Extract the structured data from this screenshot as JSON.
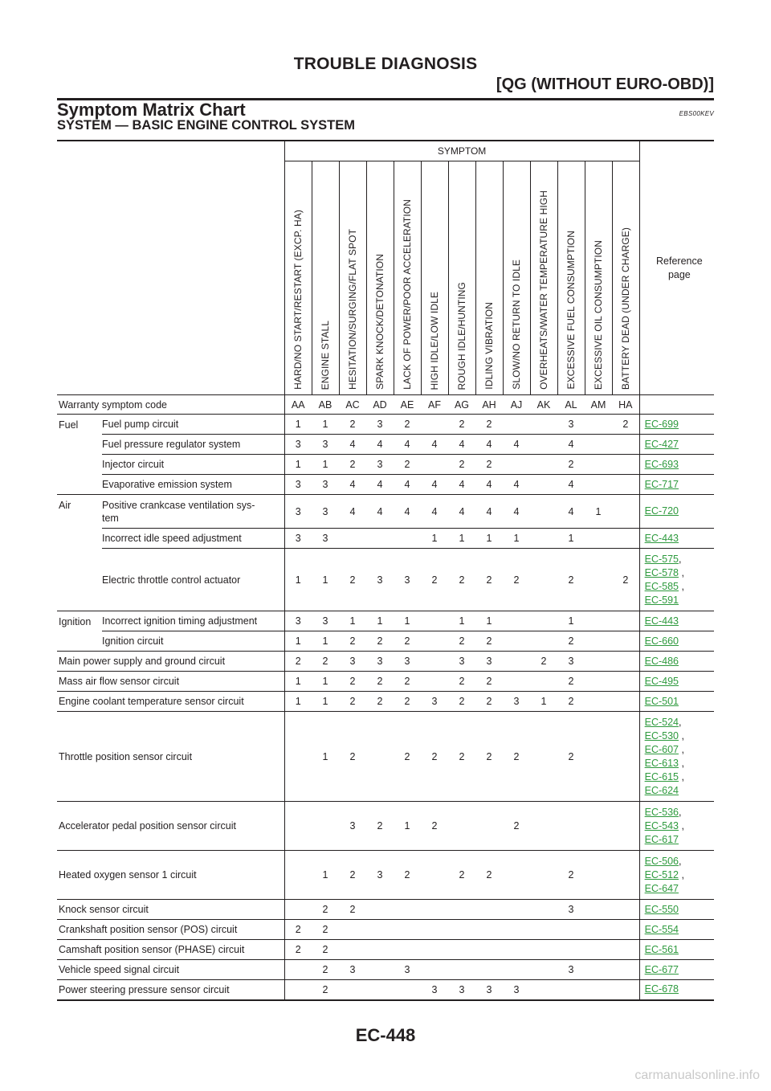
{
  "header": {
    "title": "TROUBLE DIAGNOSIS",
    "subtitle": "[QG (WITHOUT EURO-OBD)]"
  },
  "section": {
    "title": "Symptom Matrix Chart",
    "code": "EBS00KEV",
    "subtitle": "SYSTEM — BASIC ENGINE CONTROL SYSTEM"
  },
  "table": {
    "symptom_label": "SYMPTOM",
    "reference_label": "Reference page",
    "symptoms": [
      "HARD/NO START/RESTART (EXCP. HA)",
      "ENGINE STALL",
      "HESITATION/SURGING/FLAT SPOT",
      "SPARK KNOCK/DETONATION",
      "LACK OF POWER/POOR ACCELERATION",
      "HIGH IDLE/LOW IDLE",
      "ROUGH IDLE/HUNTING",
      "IDLING VIBRATION",
      "SLOW/NO RETURN TO IDLE",
      "OVERHEATS/WATER TEMPERATURE HIGH",
      "EXCESSIVE FUEL CONSUMPTION",
      "EXCESSIVE OIL CONSUMPTION",
      "BATTERY DEAD (UNDER CHARGE)"
    ],
    "warranty_label": "Warranty symptom code",
    "warranty_codes": [
      "AA",
      "AB",
      "AC",
      "AD",
      "AE",
      "AF",
      "AG",
      "AH",
      "AJ",
      "AK",
      "AL",
      "AM",
      "HA"
    ],
    "rows": [
      {
        "category": "Fuel",
        "item": "Fuel pump circuit",
        "values": [
          "1",
          "1",
          "2",
          "3",
          "2",
          "",
          "2",
          "2",
          "",
          "",
          "3",
          "",
          "2"
        ],
        "refs": [
          "EC-699"
        ]
      },
      {
        "category": "",
        "item": "Fuel pressure regulator system",
        "values": [
          "3",
          "3",
          "4",
          "4",
          "4",
          "4",
          "4",
          "4",
          "4",
          "",
          "4",
          "",
          ""
        ],
        "refs": [
          "EC-427"
        ]
      },
      {
        "category": "",
        "item": "Injector circuit",
        "values": [
          "1",
          "1",
          "2",
          "3",
          "2",
          "",
          "2",
          "2",
          "",
          "",
          "2",
          "",
          ""
        ],
        "refs": [
          "EC-693"
        ]
      },
      {
        "category": "",
        "item": "Evaporative emission system",
        "values": [
          "3",
          "3",
          "4",
          "4",
          "4",
          "4",
          "4",
          "4",
          "4",
          "",
          "4",
          "",
          ""
        ],
        "refs": [
          "EC-717"
        ]
      },
      {
        "category": "Air",
        "item": "Positive crankcase ventilation sys-\ntem",
        "values": [
          "3",
          "3",
          "4",
          "4",
          "4",
          "4",
          "4",
          "4",
          "4",
          "",
          "4",
          "1",
          ""
        ],
        "refs": [
          "EC-720"
        ]
      },
      {
        "category": "",
        "item": "Incorrect idle speed adjustment",
        "values": [
          "3",
          "3",
          "",
          "",
          "",
          "1",
          "1",
          "1",
          "1",
          "",
          "1",
          "",
          ""
        ],
        "refs": [
          "EC-443"
        ]
      },
      {
        "category": "",
        "item": "Electric throttle control actuator",
        "values": [
          "1",
          "1",
          "2",
          "3",
          "3",
          "2",
          "2",
          "2",
          "2",
          "",
          "2",
          "",
          "2"
        ],
        "refs": [
          "EC-575",
          "EC-578",
          "EC-585",
          "EC-591"
        ]
      },
      {
        "category": "Ignition",
        "item": "Incorrect ignition timing adjustment",
        "values": [
          "3",
          "3",
          "1",
          "1",
          "1",
          "",
          "1",
          "1",
          "",
          "",
          "1",
          "",
          ""
        ],
        "refs": [
          "EC-443"
        ]
      },
      {
        "category": "",
        "item": "Ignition circuit",
        "values": [
          "1",
          "1",
          "2",
          "2",
          "2",
          "",
          "2",
          "2",
          "",
          "",
          "2",
          "",
          ""
        ],
        "refs": [
          "EC-660"
        ]
      },
      {
        "category": "Main power supply and ground circuit",
        "item": "",
        "values": [
          "2",
          "2",
          "3",
          "3",
          "3",
          "",
          "3",
          "3",
          "",
          "2",
          "3",
          "",
          ""
        ],
        "refs": [
          "EC-486"
        ]
      },
      {
        "category": "Mass air flow sensor circuit",
        "item": "",
        "values": [
          "1",
          "1",
          "2",
          "2",
          "2",
          "",
          "2",
          "2",
          "",
          "",
          "2",
          "",
          ""
        ],
        "refs": [
          "EC-495"
        ]
      },
      {
        "category": "Engine coolant temperature sensor circuit",
        "item": "",
        "values": [
          "1",
          "1",
          "2",
          "2",
          "2",
          "3",
          "2",
          "2",
          "3",
          "1",
          "2",
          "",
          ""
        ],
        "refs": [
          "EC-501"
        ]
      },
      {
        "category": "Throttle position sensor circuit",
        "item": "",
        "values": [
          "",
          "1",
          "2",
          "",
          "2",
          "2",
          "2",
          "2",
          "2",
          "",
          "2",
          "",
          ""
        ],
        "refs": [
          "EC-524",
          "EC-530",
          "EC-607",
          "EC-613",
          "EC-615",
          "EC-624"
        ]
      },
      {
        "category": "Accelerator pedal position sensor circuit",
        "item": "",
        "values": [
          "",
          "",
          "3",
          "2",
          "1",
          "2",
          "",
          "",
          "2",
          "",
          "",
          "",
          ""
        ],
        "refs": [
          "EC-536",
          "EC-543",
          "EC-617"
        ]
      },
      {
        "category": "Heated oxygen sensor 1 circuit",
        "item": "",
        "values": [
          "",
          "1",
          "2",
          "3",
          "2",
          "",
          "2",
          "2",
          "",
          "",
          "2",
          "",
          ""
        ],
        "refs": [
          "EC-506",
          "EC-512",
          "EC-647"
        ]
      },
      {
        "category": "Knock sensor circuit",
        "item": "",
        "values": [
          "",
          "2",
          "2",
          "",
          "",
          "",
          "",
          "",
          "",
          "",
          "3",
          "",
          ""
        ],
        "refs": [
          "EC-550"
        ]
      },
      {
        "category": "Crankshaft position sensor (POS) circuit",
        "item": "",
        "values": [
          "2",
          "2",
          "",
          "",
          "",
          "",
          "",
          "",
          "",
          "",
          "",
          "",
          ""
        ],
        "refs": [
          "EC-554"
        ]
      },
      {
        "category": "Camshaft position sensor (PHASE) circuit",
        "item": "",
        "values": [
          "2",
          "2",
          "",
          "",
          "",
          "",
          "",
          "",
          "",
          "",
          "",
          "",
          ""
        ],
        "refs": [
          "EC-561"
        ]
      },
      {
        "category": "Vehicle speed signal circuit",
        "item": "",
        "values": [
          "",
          "2",
          "3",
          "",
          "3",
          "",
          "",
          "",
          "",
          "",
          "3",
          "",
          ""
        ],
        "refs": [
          "EC-677"
        ]
      },
      {
        "category": "Power steering pressure sensor circuit",
        "item": "",
        "values": [
          "",
          "2",
          "",
          "",
          "",
          "3",
          "3",
          "3",
          "3",
          "",
          "",
          "",
          ""
        ],
        "refs": [
          "EC-678"
        ]
      }
    ]
  },
  "footer": {
    "page": "EC-448"
  },
  "watermark": "carmanualsonline.info"
}
